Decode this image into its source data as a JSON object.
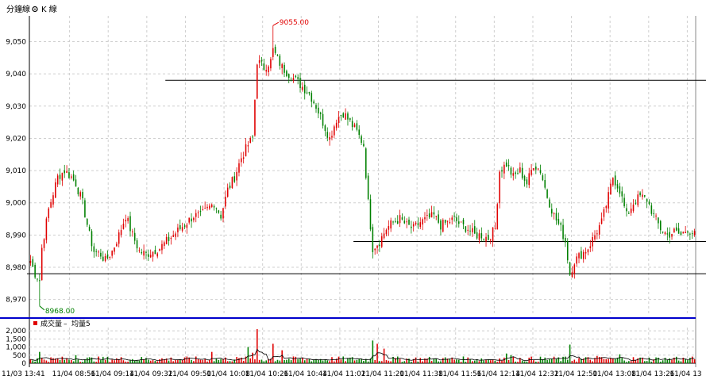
{
  "toolbar": {
    "minute_line_label": "分鐘線",
    "k_line_label": "K 線",
    "k_line_icon": "settings-icon"
  },
  "colors": {
    "up": "#e00000",
    "down": "#008000",
    "hline": "#000000",
    "divider": "#0000cc",
    "avg_line": "#000000"
  },
  "annotations": {
    "high_label": "9055.00",
    "low_label": "8968.00",
    "high_color": "#e00000",
    "low_color": "#008000"
  },
  "volume_panel": {
    "legend_volume": "成交量",
    "legend_avg": "均量5",
    "legend_separator": "–"
  },
  "chart_data": [
    {
      "type": "candlestick",
      "title": "",
      "ylim": [
        8965,
        9058
      ],
      "y_ticks": [
        "9,050",
        "9,040",
        "9,030",
        "9,020",
        "9,010",
        "9,000",
        "8,990",
        "8,980",
        "8,970"
      ],
      "y_tick_values": [
        9050,
        9040,
        9030,
        9020,
        9010,
        9000,
        8990,
        8980,
        8970
      ],
      "x_tick_labels": [
        "11/03 13:41",
        "11/04 08:56",
        "11/04 09:14",
        "11/04 09:32",
        "11/04 09:50",
        "11/04 10:08",
        "11/04 10:26",
        "11/04 10:44",
        "11/04 11:02",
        "11/04 11:20",
        "11/04 11:38",
        "11/04 11:56",
        "11/04 12:14",
        "11/04 12:32",
        "11/04 12:50",
        "11/04 13:08",
        "11/04 13:26",
        "11/04 13"
      ],
      "grid": true,
      "horizontal_lines": [
        {
          "value": 9038,
          "from_bar": 60
        },
        {
          "value": 8988,
          "from_bar": 143
        },
        {
          "value": 8978,
          "from_bar": 0
        }
      ],
      "high_point": {
        "value": 9055.0,
        "bar": 107
      },
      "low_point": {
        "value": 8968.0,
        "bar": 4
      },
      "path": [
        [
          0,
          8982
        ],
        [
          2,
          8978
        ],
        [
          4,
          8976
        ],
        [
          5,
          8986
        ],
        [
          8,
          8998
        ],
        [
          12,
          9008
        ],
        [
          15,
          9010
        ],
        [
          18,
          9008
        ],
        [
          20,
          9006
        ],
        [
          23,
          9000
        ],
        [
          26,
          8990
        ],
        [
          28,
          8985
        ],
        [
          31,
          8984
        ],
        [
          33,
          8982
        ],
        [
          36,
          8985
        ],
        [
          39,
          8990
        ],
        [
          42,
          8996
        ],
        [
          45,
          8990
        ],
        [
          48,
          8985
        ],
        [
          51,
          8984
        ],
        [
          54,
          8985
        ],
        [
          57,
          8986
        ],
        [
          60,
          8988
        ],
        [
          63,
          8990
        ],
        [
          66,
          8992
        ],
        [
          69,
          8994
        ],
        [
          72,
          8996
        ],
        [
          75,
          8996
        ],
        [
          78,
          8998
        ],
        [
          81,
          9000
        ],
        [
          84,
          8996
        ],
        [
          87,
          9004
        ],
        [
          90,
          9008
        ],
        [
          93,
          9014
        ],
        [
          96,
          9018
        ],
        [
          98,
          9020
        ],
        [
          100,
          9044
        ],
        [
          103,
          9042
        ],
        [
          106,
          9044
        ],
        [
          108,
          9046
        ],
        [
          111,
          9042
        ],
        [
          114,
          9040
        ],
        [
          117,
          9038
        ],
        [
          120,
          9036
        ],
        [
          123,
          9034
        ],
        [
          126,
          9030
        ],
        [
          129,
          9025
        ],
        [
          132,
          9020
        ],
        [
          135,
          9026
        ],
        [
          138,
          9028
        ],
        [
          141,
          9025
        ],
        [
          144,
          9022
        ],
        [
          147,
          9018
        ],
        [
          149,
          9000
        ],
        [
          151,
          8986
        ],
        [
          154,
          8988
        ],
        [
          157,
          8992
        ],
        [
          160,
          8994
        ],
        [
          163,
          8995
        ],
        [
          166,
          8993
        ],
        [
          169,
          8992
        ],
        [
          172,
          8994
        ],
        [
          175,
          8995
        ],
        [
          178,
          8996
        ],
        [
          181,
          8993
        ],
        [
          184,
          8994
        ],
        [
          187,
          8995
        ],
        [
          190,
          8993
        ],
        [
          193,
          8992
        ],
        [
          196,
          8990
        ],
        [
          199,
          8990
        ],
        [
          202,
          8989
        ],
        [
          205,
          8992
        ],
        [
          207,
          9010
        ],
        [
          210,
          9012
        ],
        [
          213,
          9008
        ],
        [
          216,
          9010
        ],
        [
          219,
          9006
        ],
        [
          222,
          9012
        ],
        [
          225,
          9010
        ],
        [
          228,
          9002
        ],
        [
          231,
          8996
        ],
        [
          234,
          8992
        ],
        [
          236,
          8988
        ],
        [
          238,
          8978
        ],
        [
          240,
          8982
        ],
        [
          243,
          8984
        ],
        [
          246,
          8986
        ],
        [
          249,
          8990
        ],
        [
          252,
          8994
        ],
        [
          255,
          9002
        ],
        [
          257,
          9008
        ],
        [
          260,
          9004
        ],
        [
          263,
          8996
        ],
        [
          266,
          9000
        ],
        [
          269,
          9002
        ],
        [
          272,
          9001
        ],
        [
          275,
          8996
        ],
        [
          278,
          8992
        ],
        [
          281,
          8990
        ],
        [
          284,
          8991
        ],
        [
          287,
          8990
        ],
        [
          290,
          8992
        ],
        [
          293,
          8990
        ]
      ],
      "bar_count": 294
    },
    {
      "type": "bar",
      "title": "",
      "series": [
        {
          "name": "成交量"
        },
        {
          "name": "均量5"
        }
      ],
      "y_ticks": [
        "2,000",
        "1,500",
        "1,000",
        "500",
        "0"
      ],
      "y_tick_values": [
        2000,
        1500,
        1000,
        500,
        0
      ],
      "ylim": [
        0,
        2200
      ],
      "spikes": [
        [
          4,
          700
        ],
        [
          20,
          500
        ],
        [
          80,
          700
        ],
        [
          96,
          1000
        ],
        [
          98,
          650
        ],
        [
          100,
          2100
        ],
        [
          107,
          1200
        ],
        [
          111,
          800
        ],
        [
          151,
          1400
        ],
        [
          153,
          1200
        ],
        [
          156,
          900
        ],
        [
          210,
          600
        ],
        [
          212,
          500
        ],
        [
          238,
          1150
        ],
        [
          250,
          450
        ],
        [
          260,
          550
        ],
        [
          285,
          400
        ]
      ],
      "base_volume_range": [
        80,
        420
      ]
    }
  ]
}
